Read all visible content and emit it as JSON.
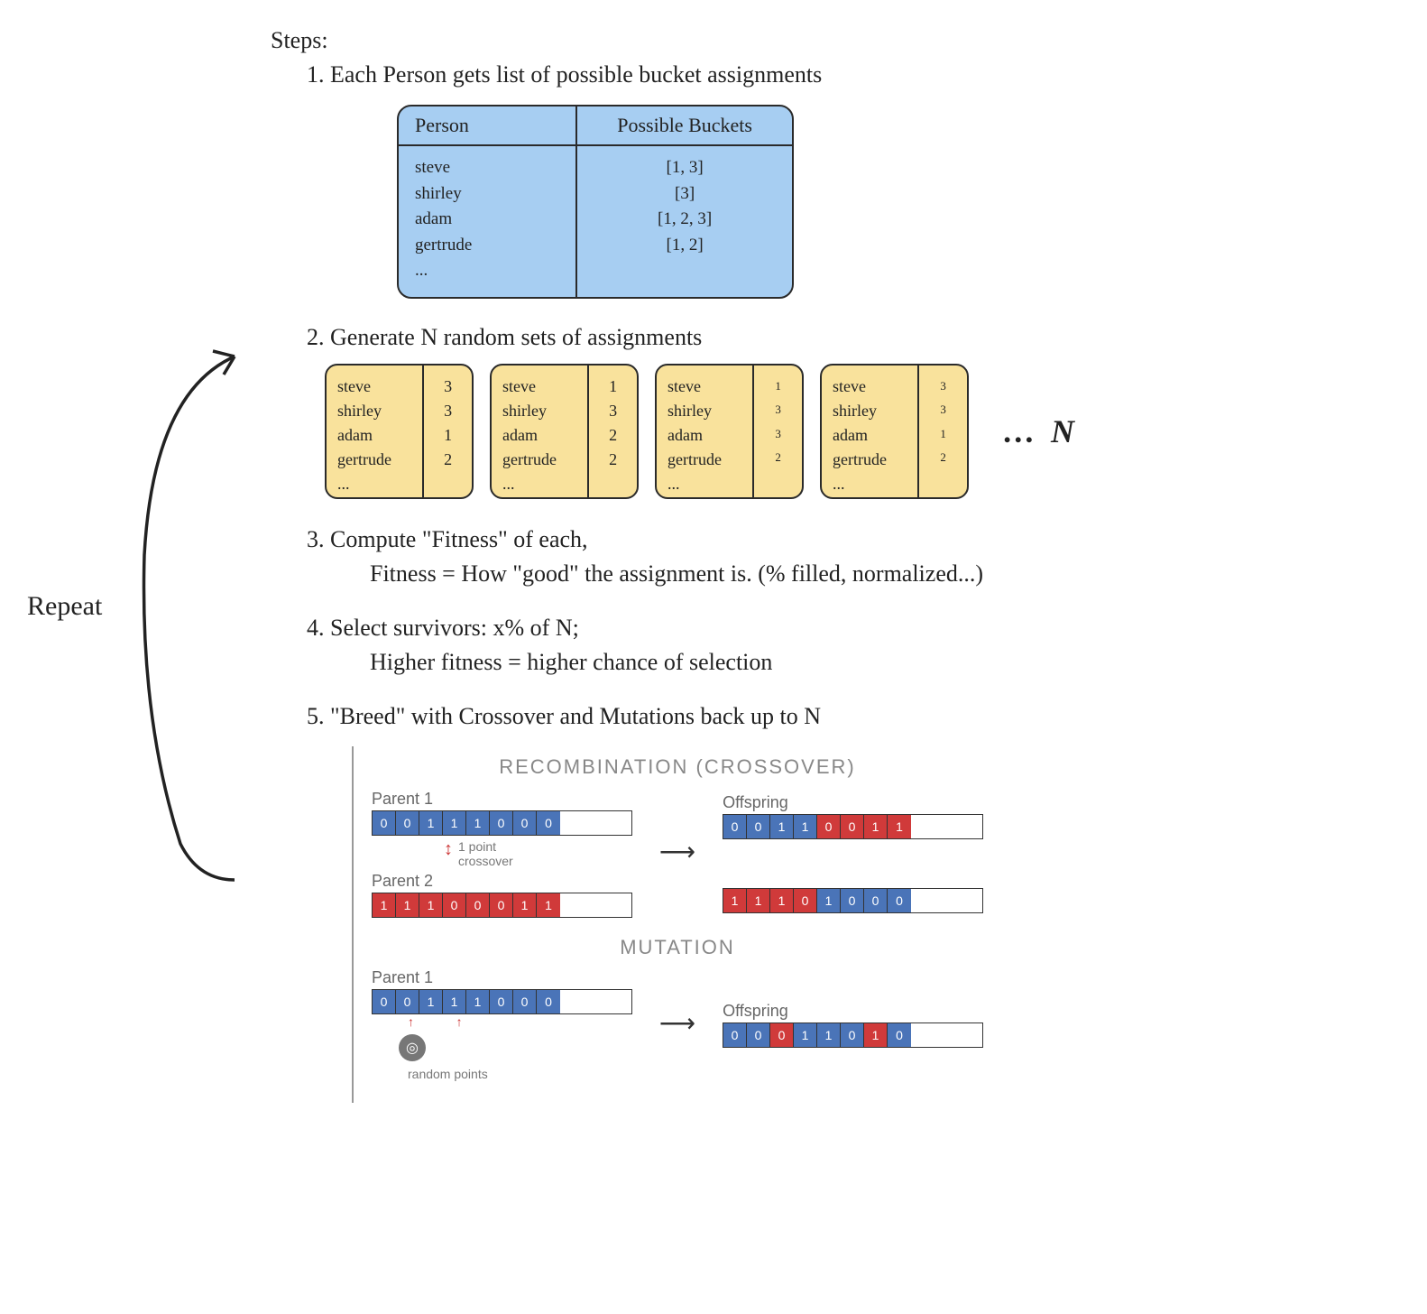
{
  "colors": {
    "bg": "#ffffff",
    "ink": "#222222",
    "blue_table_fill": "#a7cef2",
    "yellow_card_fill": "#f9e29c",
    "border": "#2a2a2a",
    "gene_blue": "#4a74b8",
    "gene_red": "#d03a3a",
    "cx_text": "#888888"
  },
  "title": "Steps:",
  "steps": {
    "s1": "1. Each Person gets list of possible bucket assignments",
    "s2": "2. Generate N random sets of assignments",
    "s3": "3. Compute \"Fitness\" of each,",
    "s3b": "Fitness = How \"good\" the assignment is. (% filled, normalized...)",
    "s4": "4. Select survivors: x% of N;",
    "s4b": "Higher fitness = higher chance of selection",
    "s5": "5. \"Breed\" with Crossover and Mutations back up to N"
  },
  "repeat_label": "Repeat",
  "blue_table": {
    "headers": {
      "c1": "Person",
      "c2": "Possible Buckets"
    },
    "rows_c1": "steve\nshirley\nadam\ngertrude\n...",
    "rows_c2": "[1, 3]\n[3]\n[1, 2, 3]\n[1, 2]"
  },
  "people_list": "steve\nshirley\nadam\ngertrude\n...",
  "cards": [
    {
      "vals": "3\n3\n1\n2",
      "small": false
    },
    {
      "vals": "1\n3\n2\n2",
      "small": false
    },
    {
      "vals": "1\n3\n3\n2",
      "small": true
    },
    {
      "vals": "3\n3\n1\n2",
      "small": true
    }
  ],
  "trail": {
    "dots": "…",
    "N": "N"
  },
  "crossover": {
    "title": "RECOMBINATION (CROSSOVER)",
    "p1_label": "Parent 1",
    "p2_label": "Parent 2",
    "off_label": "Offspring",
    "note": "1 point\ncrossover",
    "mutation_title": "MUTATION",
    "random_points": "random points",
    "p1": [
      [
        "0",
        "b"
      ],
      [
        "0",
        "b"
      ],
      [
        "1",
        "b"
      ],
      [
        "1",
        "b"
      ],
      [
        "1",
        "b"
      ],
      [
        "0",
        "b"
      ],
      [
        "0",
        "b"
      ],
      [
        "0",
        "b"
      ]
    ],
    "p2": [
      [
        "1",
        "r"
      ],
      [
        "1",
        "r"
      ],
      [
        "1",
        "r"
      ],
      [
        "0",
        "r"
      ],
      [
        "0",
        "r"
      ],
      [
        "0",
        "r"
      ],
      [
        "1",
        "r"
      ],
      [
        "1",
        "r"
      ]
    ],
    "o1": [
      [
        "0",
        "b"
      ],
      [
        "0",
        "b"
      ],
      [
        "1",
        "b"
      ],
      [
        "1",
        "b"
      ],
      [
        "0",
        "r"
      ],
      [
        "0",
        "r"
      ],
      [
        "1",
        "r"
      ],
      [
        "1",
        "r"
      ]
    ],
    "o2": [
      [
        "1",
        "r"
      ],
      [
        "1",
        "r"
      ],
      [
        "1",
        "r"
      ],
      [
        "0",
        "r"
      ],
      [
        "1",
        "b"
      ],
      [
        "0",
        "b"
      ],
      [
        "0",
        "b"
      ],
      [
        "0",
        "b"
      ]
    ],
    "mp": [
      [
        "0",
        "b"
      ],
      [
        "0",
        "b"
      ],
      [
        "1",
        "b"
      ],
      [
        "1",
        "b"
      ],
      [
        "1",
        "b"
      ],
      [
        "0",
        "b"
      ],
      [
        "0",
        "b"
      ],
      [
        "0",
        "b"
      ]
    ],
    "mo": [
      [
        "0",
        "b"
      ],
      [
        "0",
        "b"
      ],
      [
        "0",
        "r"
      ],
      [
        "1",
        "b"
      ],
      [
        "1",
        "b"
      ],
      [
        "0",
        "b"
      ],
      [
        "1",
        "r"
      ],
      [
        "0",
        "b"
      ]
    ]
  }
}
